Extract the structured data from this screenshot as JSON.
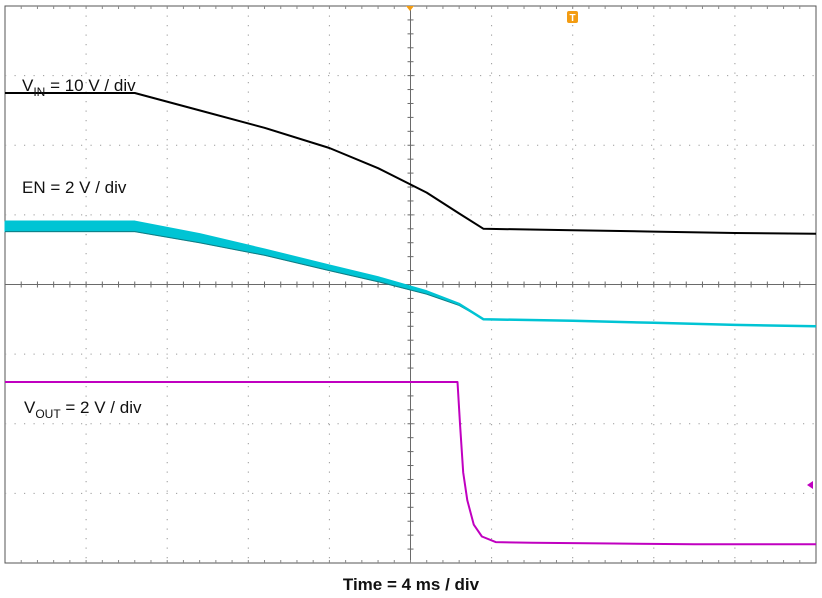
{
  "chart_data": {
    "type": "line",
    "divisions": {
      "x": 10,
      "y": 8
    },
    "x_scale": "4 ms / div",
    "xlabel": "Time  = 4 ms / div",
    "trigger_marker": "T",
    "series": [
      {
        "label_main": "V",
        "label_sub": "IN",
        "label_rest": " = 10 V / div",
        "color": "#000000",
        "width": 2,
        "x": [
          0,
          1.6,
          2.4,
          3.2,
          4.0,
          4.6,
          5.2,
          5.6,
          5.9,
          7.0,
          8.0,
          9.0,
          10.0
        ],
        "y": [
          6.75,
          6.75,
          6.5,
          6.25,
          5.96,
          5.67,
          5.32,
          5.02,
          4.8,
          4.78,
          4.76,
          4.74,
          4.73
        ]
      },
      {
        "label_main": "EN = 2 V / div",
        "label_sub": "",
        "label_rest": "",
        "color": "#00c4d4",
        "width": 2.5,
        "band": true,
        "x": [
          0,
          1.6,
          2.4,
          3.2,
          4.0,
          4.6,
          5.2,
          5.6,
          5.9,
          7.0,
          8.0,
          9.0,
          10.0
        ],
        "y": [
          4.9,
          4.9,
          4.72,
          4.5,
          4.27,
          4.1,
          3.9,
          3.72,
          3.5,
          3.48,
          3.45,
          3.42,
          3.4
        ],
        "y_lower": [
          4.76,
          4.76,
          4.6,
          4.42,
          4.2,
          4.04,
          3.86,
          3.7,
          3.5,
          3.48,
          3.45,
          3.42,
          3.4
        ]
      },
      {
        "label_main": "V",
        "label_sub": "OUT",
        "label_rest": "  = 2 V / div",
        "color": "#c000c0",
        "width": 2,
        "x": [
          0,
          5.58,
          5.61,
          5.65,
          5.7,
          5.78,
          5.88,
          6.05,
          6.5,
          7.5,
          8.5,
          10.0
        ],
        "y": [
          2.6,
          2.6,
          2.0,
          1.3,
          0.9,
          0.55,
          0.38,
          0.3,
          0.29,
          0.28,
          0.27,
          0.27
        ]
      }
    ]
  }
}
